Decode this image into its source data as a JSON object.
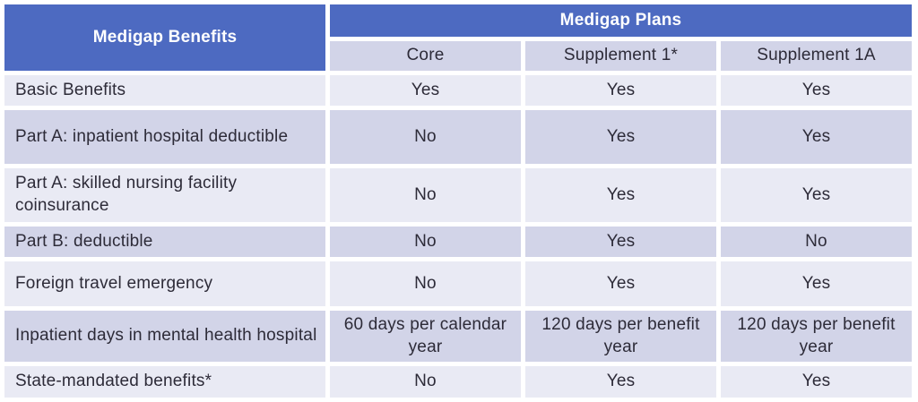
{
  "table": {
    "corner_header": "Medigap Benefits",
    "group_header": "Medigap Plans",
    "columns": [
      "Core",
      "Supplement 1*",
      "Supplement 1A"
    ],
    "rows": [
      {
        "benefit": "Basic Benefits",
        "values": [
          "Yes",
          "Yes",
          "Yes"
        ]
      },
      {
        "benefit": "Part A: inpatient hospital deductible",
        "values": [
          "No",
          "Yes",
          "Yes"
        ]
      },
      {
        "benefit": "Part A: skilled nursing facility coinsurance",
        "values": [
          "No",
          "Yes",
          "Yes"
        ]
      },
      {
        "benefit": "Part B: deductible",
        "values": [
          "No",
          "Yes",
          "No"
        ]
      },
      {
        "benefit": "Foreign travel emergency",
        "values": [
          "No",
          "Yes",
          "Yes"
        ]
      },
      {
        "benefit": "Inpatient days in mental health hospital",
        "values": [
          "60 days per calendar year",
          "120 days per benefit year",
          "120 days per benefit year"
        ]
      },
      {
        "benefit": "State-mandated benefits*",
        "values": [
          "No",
          "Yes",
          "Yes"
        ]
      }
    ],
    "colors": {
      "header_blue": "#4d6ac1",
      "subheader_bg": "#d2d4e8",
      "row_light": "#e9eaf4",
      "row_dark": "#d2d4e8",
      "body_text": "#2d2b38",
      "header_text": "#ffffff"
    }
  }
}
